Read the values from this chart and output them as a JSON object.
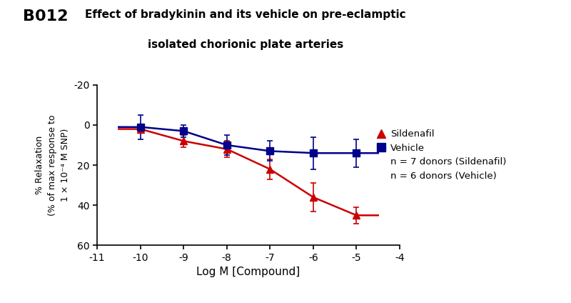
{
  "title_label": "B012",
  "title_main_line1": "Effect of bradykinin and its vehicle on pre-eclamptic",
  "title_main_line2": "isolated chorionic plate arteries",
  "xlabel": "Log M [Compound]",
  "ylabel": "% Relaxation\n(% of max response to\n1 × 10⁻⁴ M SNP)",
  "xlim": [
    -11,
    -4
  ],
  "ylim": [
    60,
    -20
  ],
  "xticks": [
    -11,
    -10,
    -9,
    -8,
    -7,
    -6,
    -5,
    -4
  ],
  "yticks": [
    -20,
    0,
    20,
    40,
    60
  ],
  "sildenafil_x": [
    -10,
    -9,
    -8,
    -7,
    -6,
    -5
  ],
  "sildenafil_y": [
    2,
    8,
    12,
    22,
    36,
    45
  ],
  "sildenafil_yerr": [
    2,
    3,
    4,
    5,
    7,
    4
  ],
  "vehicle_x": [
    -10,
    -9,
    -8,
    -7,
    -6,
    -5
  ],
  "vehicle_y": [
    1,
    3,
    10,
    13,
    14,
    14
  ],
  "vehicle_yerr": [
    6,
    3,
    5,
    5,
    8,
    7
  ],
  "sildenafil_color": "#cc0000",
  "vehicle_color": "#00008B",
  "legend_entries": [
    "Sildenafil",
    "Vehicle",
    "n = 7 donors (Sildenafil)",
    "n = 6 donors (Vehicle)"
  ],
  "background_color": "#ffffff",
  "title_fontsize": 11,
  "label_fontsize": 10,
  "tick_fontsize": 10
}
